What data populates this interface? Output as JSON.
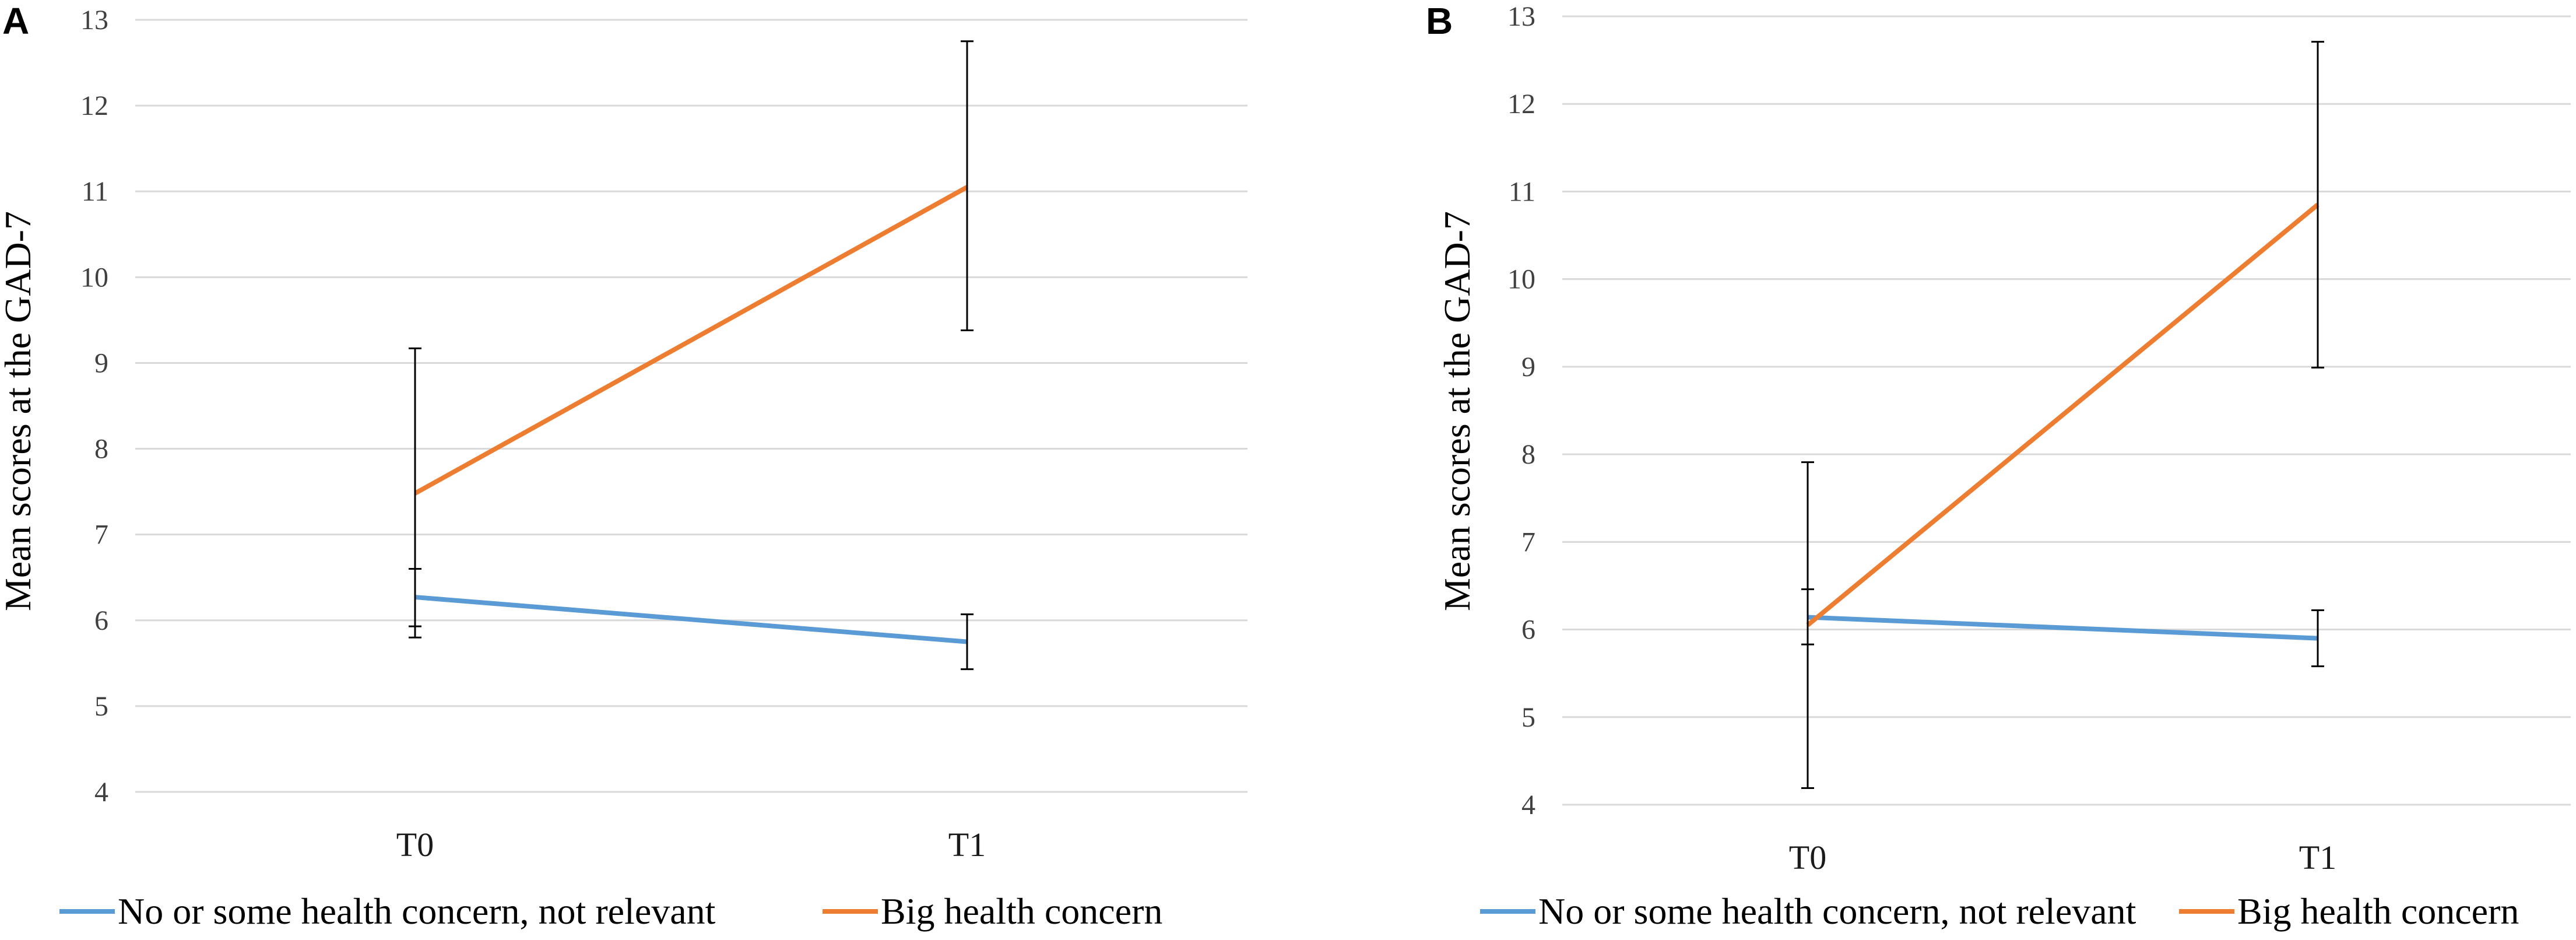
{
  "chart_data": [
    {
      "type": "line",
      "panel_label": "A",
      "title": "",
      "xlabel": "",
      "ylabel": "Mean scores at the GAD-7",
      "categories": [
        "T0",
        "T1"
      ],
      "yticks": [
        "4",
        "5",
        "6",
        "7",
        "8",
        "9",
        "10",
        "11",
        "12",
        "13"
      ],
      "ylim": [
        4,
        13
      ],
      "grid": true,
      "legend_position": "bottom",
      "series": [
        {
          "name": "No or some health concern, not relevant",
          "color": "#5b9bd5",
          "values": [
            6.27,
            5.75
          ],
          "err_low": [
            5.93,
            5.43
          ],
          "err_high": [
            6.6,
            6.07
          ]
        },
        {
          "name": "Big health concern",
          "color": "#ed7d31",
          "values": [
            7.48,
            11.05
          ],
          "err_low": [
            5.8,
            9.38
          ],
          "err_high": [
            9.17,
            12.75
          ]
        }
      ]
    },
    {
      "type": "line",
      "panel_label": "B",
      "title": "",
      "xlabel": "",
      "ylabel": "Mean scores at the GAD-7",
      "categories": [
        "T0",
        "T1"
      ],
      "yticks": [
        "4",
        "5",
        "6",
        "7",
        "8",
        "9",
        "10",
        "11",
        "12",
        "13"
      ],
      "ylim": [
        4,
        13
      ],
      "grid": true,
      "legend_position": "bottom",
      "series": [
        {
          "name": "No or some health concern, not relevant",
          "color": "#5b9bd5",
          "values": [
            6.14,
            5.9
          ],
          "err_low": [
            5.83,
            5.58
          ],
          "err_high": [
            6.46,
            6.22
          ]
        },
        {
          "name": "Big health concern",
          "color": "#ed7d31",
          "values": [
            6.05,
            10.85
          ],
          "err_low": [
            4.19,
            8.99
          ],
          "err_high": [
            7.91,
            12.71
          ]
        }
      ]
    }
  ]
}
